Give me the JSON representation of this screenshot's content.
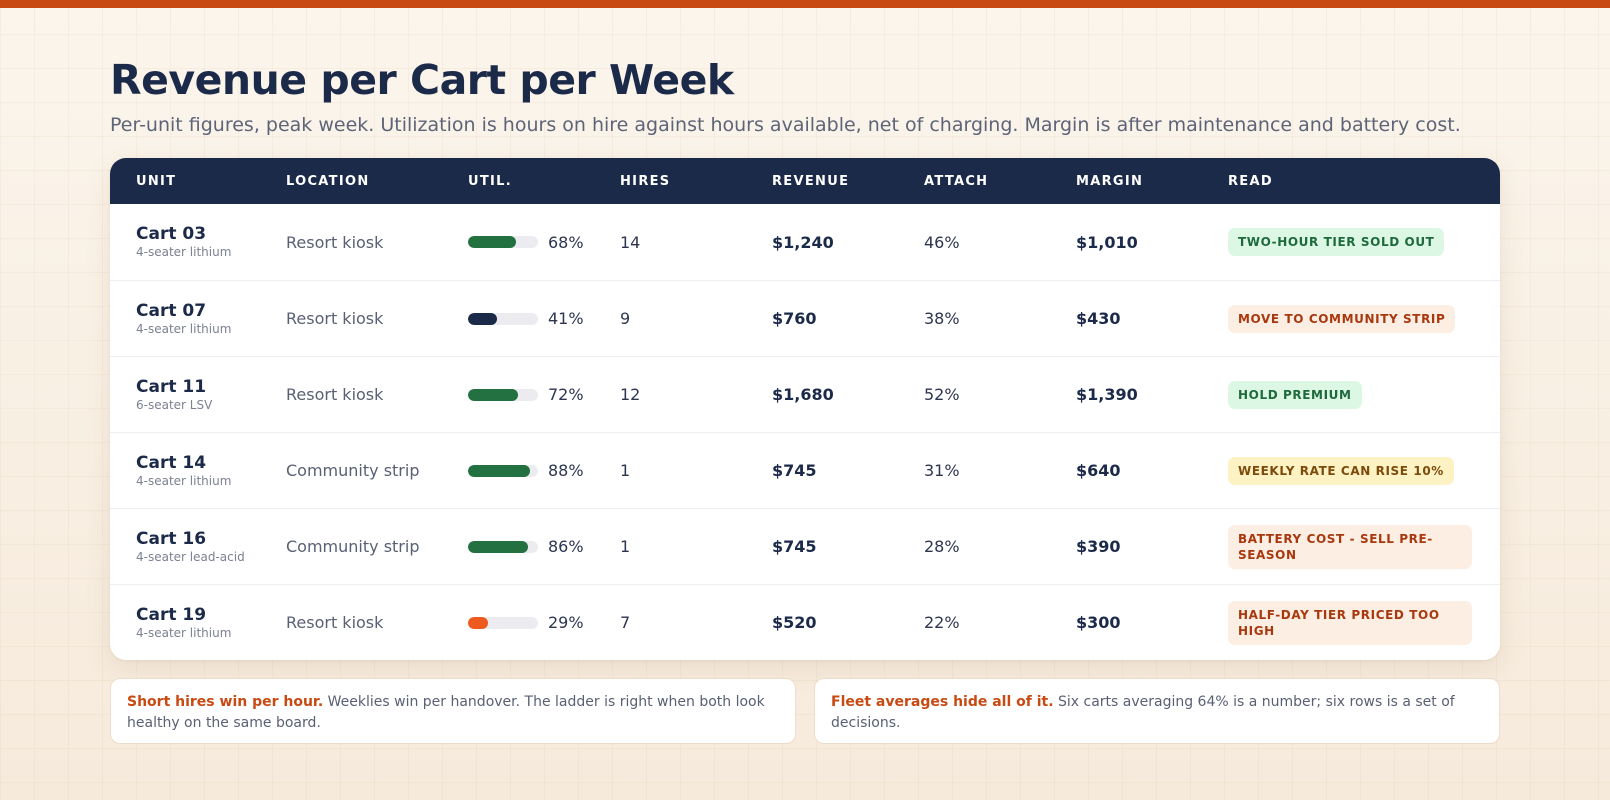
{
  "header": {
    "title": "Revenue per Cart per Week",
    "subtitle": "Per-unit figures, peak week. Utilization is hours on hire against hours available, net of charging. Margin is after maintenance and battery cost."
  },
  "table": {
    "columns": [
      "UNIT",
      "LOCATION",
      "UTIL.",
      "HIRES",
      "REVENUE",
      "ATTACH",
      "MARGIN",
      "READ"
    ],
    "rows": [
      {
        "unit": "Cart 03",
        "type": "4-seater lithium",
        "location": "Resort kiosk",
        "util": "68%",
        "util_fraction": 0.68,
        "util_color": "#237040",
        "hires": "14",
        "revenue": "$1,240",
        "attach": "46%",
        "margin": "$1,010",
        "read": "TWO-HOUR TIER SOLD OUT",
        "badge_bg": "#dcf7e4",
        "badge_fg": "#1e6a3c"
      },
      {
        "unit": "Cart 07",
        "type": "4-seater lithium",
        "location": "Resort kiosk",
        "util": "41%",
        "util_fraction": 0.41,
        "util_color": "#1c2a4a",
        "hires": "9",
        "revenue": "$760",
        "attach": "38%",
        "margin": "$430",
        "read": "MOVE TO COMMUNITY STRIP",
        "badge_bg": "#fdeee4",
        "badge_fg": "#a8380e"
      },
      {
        "unit": "Cart 11",
        "type": "6-seater LSV",
        "location": "Resort kiosk",
        "util": "72%",
        "util_fraction": 0.72,
        "util_color": "#237040",
        "hires": "12",
        "revenue": "$1,680",
        "attach": "52%",
        "margin": "$1,390",
        "read": "HOLD PREMIUM",
        "badge_bg": "#dcf7e4",
        "badge_fg": "#1e6a3c"
      },
      {
        "unit": "Cart 14",
        "type": "4-seater lithium",
        "location": "Community strip",
        "util": "88%",
        "util_fraction": 0.88,
        "util_color": "#237040",
        "hires": "1",
        "revenue": "$745",
        "attach": "31%",
        "margin": "$640",
        "read": "WEEKLY RATE CAN RISE 10%",
        "badge_bg": "#fdf2c4",
        "badge_fg": "#7e4a0a"
      },
      {
        "unit": "Cart 16",
        "type": "4-seater lead-acid",
        "location": "Community strip",
        "util": "86%",
        "util_fraction": 0.86,
        "util_color": "#237040",
        "hires": "1",
        "revenue": "$745",
        "attach": "28%",
        "margin": "$390",
        "read": "BATTERY COST - SELL PRE-SEASON",
        "badge_bg": "#fdeee4",
        "badge_fg": "#a8380e"
      },
      {
        "unit": "Cart 19",
        "type": "4-seater lithium",
        "location": "Resort kiosk",
        "util": "29%",
        "util_fraction": 0.29,
        "util_color": "#ee5a1e",
        "hires": "7",
        "revenue": "$520",
        "attach": "22%",
        "margin": "$300",
        "read": "HALF-DAY TIER PRICED TOO HIGH",
        "badge_bg": "#fdeee4",
        "badge_fg": "#a8380e"
      }
    ]
  },
  "notes": [
    {
      "strong": "Short hires win per hour.",
      "text": " Weeklies win per handover. The ladder is right when both look healthy on the same board."
    },
    {
      "strong": "Fleet averages hide all of it.",
      "text": " Six carts averaging 64% is a number; six rows is a set of decisions."
    }
  ]
}
